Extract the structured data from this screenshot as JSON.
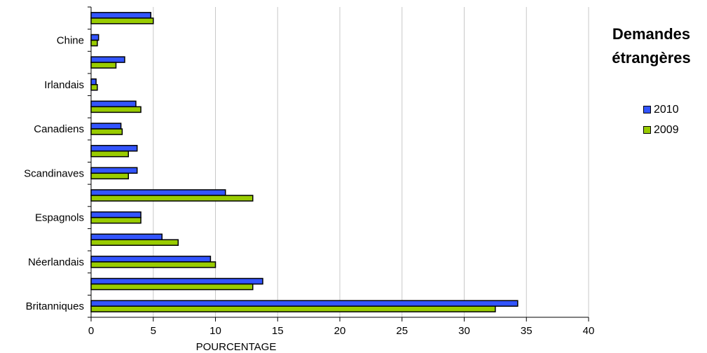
{
  "chart_data": {
    "type": "bar",
    "orientation": "horizontal",
    "title": "",
    "xlabel": "POURCENTAGE",
    "ylabel": "",
    "xlim": [
      0,
      40
    ],
    "xticks": [
      0,
      5,
      10,
      15,
      20,
      25,
      30,
      35,
      40
    ],
    "grid": true,
    "legend_title_lines": [
      "Demandes",
      "étrangères"
    ],
    "legend_position": "right",
    "categories": [
      "Britanniques",
      "",
      "Néerlandais",
      "",
      "Espagnols",
      "",
      "Scandinaves",
      "",
      "Canadiens",
      "",
      "Irlandais",
      "",
      "Chine",
      ""
    ],
    "series": [
      {
        "name": "2010",
        "color": "#3355ff",
        "values": [
          34.3,
          13.8,
          9.6,
          5.7,
          4.0,
          10.8,
          3.7,
          3.7,
          2.4,
          3.6,
          0.4,
          2.7,
          0.6,
          4.8
        ]
      },
      {
        "name": "2009",
        "color": "#99cc00",
        "values": [
          32.5,
          13.0,
          10.0,
          7.0,
          4.0,
          13.0,
          3.0,
          3.0,
          2.5,
          4.0,
          0.5,
          2.0,
          0.5,
          5.0
        ]
      }
    ]
  }
}
